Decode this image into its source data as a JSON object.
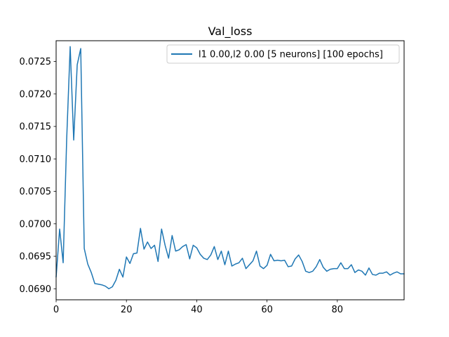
{
  "chart_data": {
    "type": "line",
    "title": "Val_loss",
    "xlabel": "",
    "ylabel": "",
    "xlim": [
      0,
      99
    ],
    "ylim": [
      0.06883,
      0.07282
    ],
    "xticks": [
      0,
      20,
      40,
      60,
      80
    ],
    "xtick_labels": [
      "0",
      "20",
      "40",
      "60",
      "80"
    ],
    "yticks": [
      0.069,
      0.0695,
      0.07,
      0.0705,
      0.071,
      0.0715,
      0.072,
      0.0725
    ],
    "ytick_labels": [
      "0.0690",
      "0.0695",
      "0.0700",
      "0.0705",
      "0.0710",
      "0.0715",
      "0.0720",
      "0.0725"
    ],
    "grid": false,
    "legend_position": "top-right",
    "series": [
      {
        "name": "l1 0.00,l2 0.00 [5 neurons] [100 epochs]",
        "color": "#1f77b4",
        "x": [
          0,
          1,
          2,
          3,
          4,
          5,
          6,
          7,
          8,
          9,
          10,
          11,
          12,
          13,
          14,
          15,
          16,
          17,
          18,
          19,
          20,
          21,
          22,
          23,
          24,
          25,
          26,
          27,
          28,
          29,
          30,
          31,
          32,
          33,
          34,
          35,
          36,
          37,
          38,
          39,
          40,
          41,
          42,
          43,
          44,
          45,
          46,
          47,
          48,
          49,
          50,
          51,
          52,
          53,
          54,
          55,
          56,
          57,
          58,
          59,
          60,
          61,
          62,
          63,
          64,
          65,
          66,
          67,
          68,
          69,
          70,
          71,
          72,
          73,
          74,
          75,
          76,
          77,
          78,
          79,
          80,
          81,
          82,
          83,
          84,
          85,
          86,
          87,
          88,
          89,
          90,
          91,
          92,
          93,
          94,
          95,
          96,
          97,
          98,
          99
        ],
        "y": [
          0.06918,
          0.06992,
          0.0694,
          0.0713,
          0.07273,
          0.07129,
          0.07245,
          0.0727,
          0.06962,
          0.06938,
          0.06925,
          0.06908,
          0.06907,
          0.06906,
          0.06904,
          0.069,
          0.06903,
          0.06913,
          0.0693,
          0.06918,
          0.06949,
          0.06939,
          0.06954,
          0.06955,
          0.06993,
          0.06961,
          0.06972,
          0.06962,
          0.06967,
          0.06942,
          0.06992,
          0.06967,
          0.06947,
          0.06982,
          0.06958,
          0.0696,
          0.06965,
          0.06968,
          0.06946,
          0.06967,
          0.06963,
          0.06953,
          0.06947,
          0.06945,
          0.06952,
          0.06965,
          0.06945,
          0.06958,
          0.06937,
          0.06958,
          0.06935,
          0.06938,
          0.0694,
          0.06947,
          0.06931,
          0.06937,
          0.06943,
          0.06958,
          0.06935,
          0.06931,
          0.06936,
          0.06953,
          0.06943,
          0.06944,
          0.06943,
          0.06944,
          0.06934,
          0.06935,
          0.06946,
          0.06952,
          0.06942,
          0.06927,
          0.06925,
          0.06927,
          0.06934,
          0.06945,
          0.06933,
          0.06927,
          0.0693,
          0.06931,
          0.06931,
          0.0694,
          0.06931,
          0.06931,
          0.06937,
          0.06925,
          0.06929,
          0.06927,
          0.06921,
          0.06932,
          0.06922,
          0.06921,
          0.06924,
          0.06924,
          0.06926,
          0.06921,
          0.06924,
          0.06926,
          0.06923,
          0.06923
        ]
      }
    ]
  }
}
